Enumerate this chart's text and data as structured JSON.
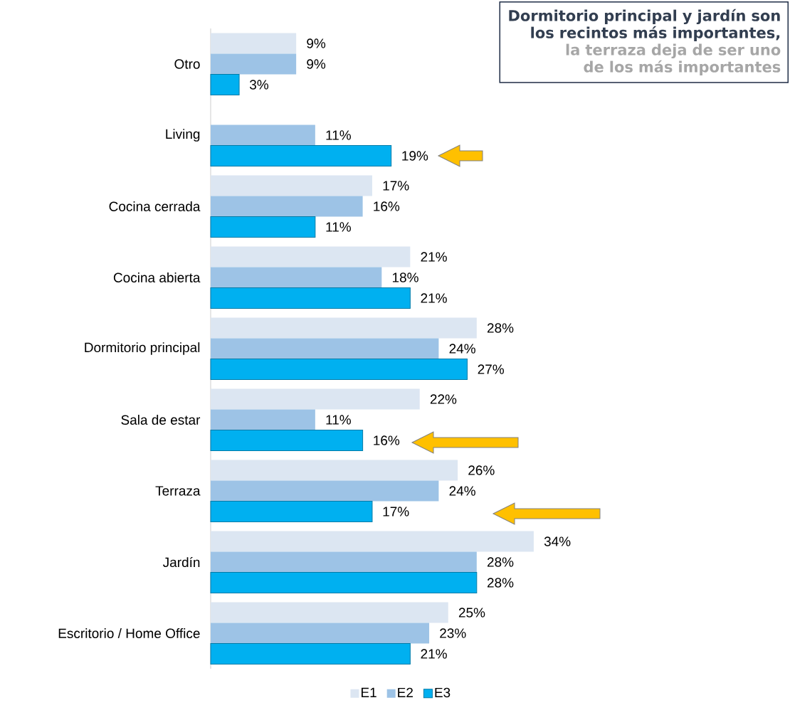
{
  "chart_data": {
    "type": "bar",
    "orientation": "horizontal",
    "title": "Dormitorio principal y jardín son los recintos más importantes,",
    "subtitle": "la terraza deja de ser uno de los más importantes",
    "categories": [
      "Otro",
      "Living",
      "Cocina cerrada",
      "Cocina abierta",
      "Dormitorio principal",
      "Sala de estar",
      "Terraza",
      "Jardín",
      "Escritorio / Home Office"
    ],
    "series": [
      {
        "name": "E1",
        "color": "#dce6f2",
        "values": [
          9,
          null,
          17,
          21,
          28,
          22,
          26,
          34,
          25
        ],
        "value_labels": [
          "9%",
          null,
          "17%",
          "21%",
          "28%",
          "22%",
          "26%",
          "34%",
          "25%"
        ]
      },
      {
        "name": "E2",
        "color": "#9dc3e6",
        "values": [
          9,
          11,
          16,
          18,
          24,
          11,
          24,
          28,
          23
        ],
        "value_labels": [
          "9%",
          "11%",
          "16%",
          "18%",
          "24%",
          "11%",
          "24%",
          "28%",
          "23%"
        ]
      },
      {
        "name": "E3",
        "color": "#00b0f0",
        "values": [
          3,
          19,
          11,
          21,
          27,
          16,
          17,
          28,
          21
        ],
        "value_labels": [
          "3%",
          "19%",
          "11%",
          "21%",
          "27%",
          "16%",
          "17%",
          "28%",
          "21%"
        ]
      }
    ],
    "legend": "bottom"
  }
}
